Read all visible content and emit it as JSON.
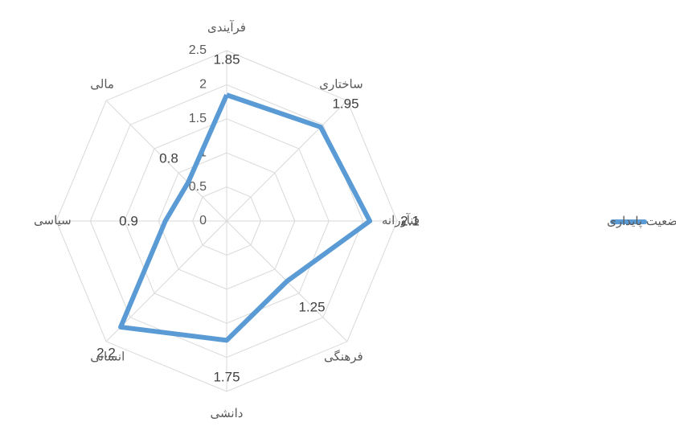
{
  "chart_data": {
    "type": "radar",
    "categories": [
      "فرآیندی",
      "ساختاری",
      "فنآورانه",
      "فرهنگی",
      "دانشی",
      "انسانی",
      "سیاسی",
      "مالی"
    ],
    "series": [
      {
        "name": "وضعیت پایداری",
        "color": "#5b9bd5",
        "values": [
          1.85,
          1.95,
          2.1,
          1.25,
          1.75,
          2.2,
          0.9,
          0.8
        ]
      }
    ],
    "rlim": [
      0,
      2.5
    ],
    "rticks": [
      0,
      0.5,
      1,
      1.5,
      2,
      2.5
    ],
    "grid": true,
    "legend": "right"
  }
}
